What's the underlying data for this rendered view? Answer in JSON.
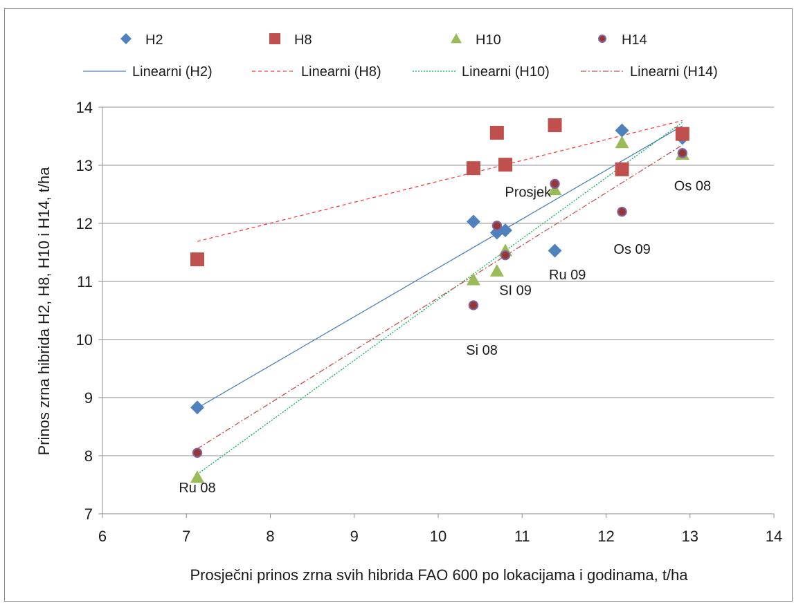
{
  "chart_data": {
    "type": "scatter",
    "xlabel": "Prosječni prinos zrna svih hibrida FAO 600 po lokacijama i godinama, t/ha",
    "ylabel": "Prinos zrna hibrida H2, H8, H10 i H14, t/ha",
    "xlim": [
      6,
      14
    ],
    "ylim": [
      7,
      14
    ],
    "xticks": [
      6,
      7,
      8,
      9,
      10,
      11,
      12,
      13,
      14
    ],
    "yticks": [
      7,
      8,
      9,
      10,
      11,
      12,
      13,
      14
    ],
    "grid": "horizontal",
    "legend_position": "top",
    "series": [
      {
        "name": "H2",
        "marker": "diamond",
        "color": "#4f81bd",
        "x": [
          7.13,
          10.42,
          10.7,
          10.8,
          11.39,
          12.19,
          12.91
        ],
        "y": [
          8.83,
          12.03,
          11.84,
          11.88,
          11.53,
          13.6,
          13.47
        ]
      },
      {
        "name": "H8",
        "marker": "square",
        "color": "#c0504d",
        "x": [
          7.13,
          10.42,
          10.7,
          10.8,
          11.39,
          12.19,
          12.91
        ],
        "y": [
          11.38,
          12.95,
          13.56,
          13.01,
          13.69,
          12.93,
          13.54
        ]
      },
      {
        "name": "H10",
        "marker": "triangle",
        "color": "#9bbb59",
        "x": [
          7.13,
          10.42,
          10.7,
          10.8,
          11.39,
          12.19,
          12.91
        ],
        "y": [
          7.63,
          11.03,
          11.18,
          11.53,
          12.58,
          13.39,
          13.19
        ]
      },
      {
        "name": "H14",
        "marker": "circle",
        "color": "#953735",
        "edge": "#8064a2",
        "x": [
          7.13,
          10.42,
          10.7,
          10.8,
          11.39,
          12.19,
          12.91
        ],
        "y": [
          8.05,
          10.59,
          11.96,
          11.45,
          12.68,
          12.2,
          13.21
        ]
      }
    ],
    "trendlines": [
      {
        "name": "Linearni (H2)",
        "style": "solid",
        "color": "#4f81bd",
        "x": [
          7.13,
          12.91
        ],
        "y": [
          8.82,
          13.68
        ]
      },
      {
        "name": "Linearni (H8)",
        "style": "dashed",
        "color": "#ff3b3b",
        "x": [
          7.13,
          12.91
        ],
        "y": [
          11.69,
          13.77
        ]
      },
      {
        "name": "Linearni (H10)",
        "style": "dotted",
        "color": "#00b050",
        "x": [
          7.13,
          12.91
        ],
        "y": [
          7.68,
          13.74
        ]
      },
      {
        "name": "Linearni (H14)",
        "style": "dashdot",
        "color": "#c0504d",
        "x": [
          7.13,
          12.91
        ],
        "y": [
          8.12,
          13.35
        ]
      }
    ],
    "annotations": [
      {
        "text": "Ru 08",
        "x": 7.13,
        "y": 7.45
      },
      {
        "text": "Si 08",
        "x": 10.52,
        "y": 9.82
      },
      {
        "text": "SI 09",
        "x": 10.92,
        "y": 10.85
      },
      {
        "text": "Ru 09",
        "x": 11.54,
        "y": 11.12
      },
      {
        "text": "Prosjek",
        "x": 11.07,
        "y": 12.54
      },
      {
        "text": "Os 09",
        "x": 12.31,
        "y": 11.56
      },
      {
        "text": "Os 08",
        "x": 13.03,
        "y": 12.65
      }
    ]
  }
}
